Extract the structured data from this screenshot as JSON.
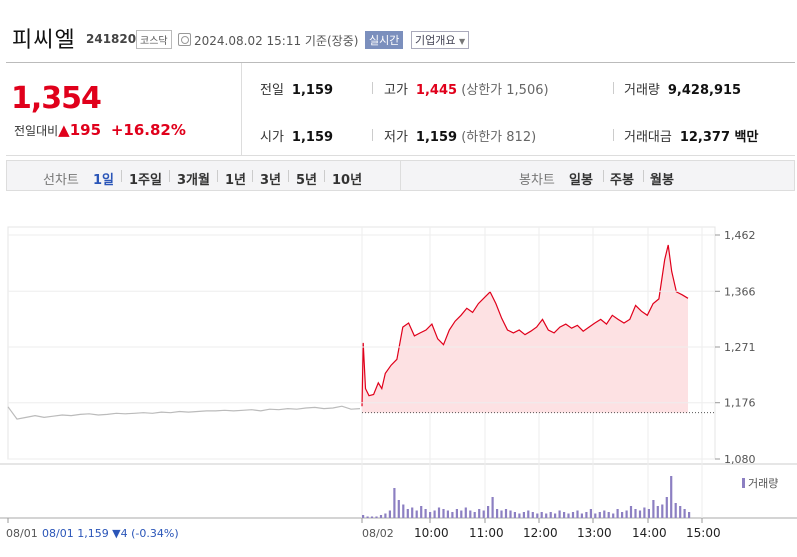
{
  "header": {
    "name": "피씨엘",
    "code": "241820",
    "market": "코스닥",
    "datetime": "2024.08.02 15:11 기준(장중)",
    "realtime": "실시간",
    "overview": "기업개요"
  },
  "summary": {
    "price": "1,354",
    "change_label": "전일대비",
    "change_arrow": "▲",
    "change": "195",
    "change_pct": "+16.82%",
    "prev_label": "전일",
    "prev": "1,159",
    "open_label": "시가",
    "open": "1,159",
    "high_label": "고가",
    "high": "1,445",
    "upper_limit": "(상한가 1,506)",
    "low_label": "저가",
    "low": "1,159",
    "lower_limit": "(하한가 812)",
    "volume_label": "거래량",
    "volume": "9,428,915",
    "amount_label": "거래대금",
    "amount": "12,377 백만"
  },
  "tabs": {
    "line_label": "선차트",
    "periods": [
      "1일",
      "1주일",
      "3개월",
      "1년",
      "3년",
      "5년",
      "10년"
    ],
    "selected": "1일",
    "candle_label": "봉차트",
    "candle": [
      "일봉",
      "주봉",
      "월봉"
    ]
  },
  "colors": {
    "up": "#e0001b",
    "down": "#2a55b8",
    "fill": "#fde1e3",
    "prevday": "#bbbbbb",
    "volume": "#8c7fc2"
  },
  "chart_data": {
    "type": "line",
    "y_ticks": [
      "1,462",
      "1,366",
      "1,271",
      "1,176",
      "1,080"
    ],
    "ylim": [
      1080,
      1462
    ],
    "x_labels": [
      "08/01",
      "08/02",
      "10:00",
      "11:00",
      "12:00",
      "13:00",
      "14:00",
      "15:00"
    ],
    "prev_day_note": "08/01 1,159 ▼4 (-0.34%)",
    "volume_label": "거래량",
    "baseline": 1159,
    "prev_day": {
      "date": "08/01",
      "values": [
        1169,
        1148,
        1151,
        1154,
        1151,
        1153,
        1155,
        1154,
        1156,
        1157,
        1155,
        1156,
        1158,
        1157,
        1158,
        1159,
        1158,
        1160,
        1159,
        1161,
        1160,
        1161,
        1162,
        1162,
        1163,
        1162,
        1163,
        1164,
        1162,
        1165,
        1164,
        1166,
        1165,
        1167,
        1168,
        1166,
        1167,
        1170,
        1165,
        1166
      ]
    },
    "intraday": {
      "date": "08/02",
      "points": [
        [
          0,
          1170
        ],
        [
          1,
          1278
        ],
        [
          3,
          1200
        ],
        [
          6,
          1188
        ],
        [
          10,
          1190
        ],
        [
          14,
          1210
        ],
        [
          17,
          1200
        ],
        [
          20,
          1226
        ],
        [
          25,
          1240
        ],
        [
          30,
          1250
        ],
        [
          35,
          1305
        ],
        [
          40,
          1312
        ],
        [
          45,
          1290
        ],
        [
          50,
          1295
        ],
        [
          55,
          1300
        ],
        [
          60,
          1310
        ],
        [
          65,
          1285
        ],
        [
          70,
          1275
        ],
        [
          75,
          1300
        ],
        [
          80,
          1315
        ],
        [
          85,
          1325
        ],
        [
          90,
          1337
        ],
        [
          95,
          1330
        ],
        [
          100,
          1345
        ],
        [
          105,
          1355
        ],
        [
          110,
          1365
        ],
        [
          115,
          1345
        ],
        [
          120,
          1320
        ],
        [
          125,
          1300
        ],
        [
          130,
          1295
        ],
        [
          135,
          1300
        ],
        [
          140,
          1292
        ],
        [
          145,
          1298
        ],
        [
          150,
          1305
        ],
        [
          155,
          1318
        ],
        [
          160,
          1300
        ],
        [
          165,
          1295
        ],
        [
          170,
          1305
        ],
        [
          175,
          1310
        ],
        [
          180,
          1303
        ],
        [
          185,
          1308
        ],
        [
          190,
          1298
        ],
        [
          195,
          1305
        ],
        [
          200,
          1312
        ],
        [
          205,
          1318
        ],
        [
          210,
          1310
        ],
        [
          215,
          1325
        ],
        [
          220,
          1318
        ],
        [
          225,
          1312
        ],
        [
          230,
          1318
        ],
        [
          235,
          1342
        ],
        [
          240,
          1332
        ],
        [
          245,
          1325
        ],
        [
          250,
          1345
        ],
        [
          255,
          1353
        ],
        [
          260,
          1420
        ],
        [
          263,
          1445
        ],
        [
          266,
          1400
        ],
        [
          270,
          1365
        ],
        [
          275,
          1360
        ],
        [
          280,
          1354
        ]
      ]
    },
    "volume": [
      2,
      1,
      1,
      1,
      2,
      3,
      5,
      20,
      12,
      9,
      6,
      7,
      5,
      8,
      6,
      4,
      5,
      7,
      6,
      5,
      4,
      6,
      5,
      7,
      5,
      4,
      6,
      5,
      8,
      14,
      6,
      5,
      6,
      5,
      4,
      3,
      4,
      5,
      4,
      3,
      4,
      3,
      4,
      3,
      5,
      4,
      3,
      4,
      5,
      3,
      4,
      6,
      3,
      4,
      5,
      4,
      3,
      6,
      4,
      5,
      8,
      6,
      5,
      7,
      6,
      12,
      8,
      9,
      14,
      28,
      10,
      8,
      6,
      4
    ]
  }
}
